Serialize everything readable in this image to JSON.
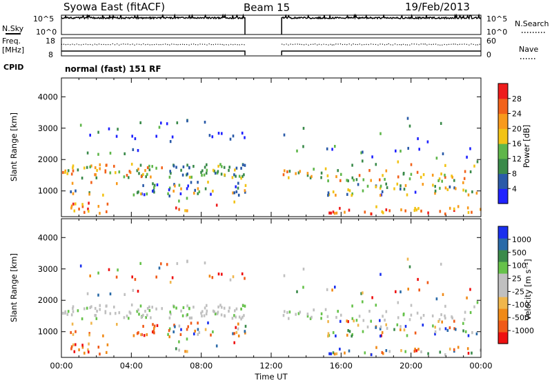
{
  "header": {
    "station": "Syowa East (fitACF)",
    "beam": "Beam 15",
    "date": "19/Feb/2013"
  },
  "summary_panels": {
    "nsky_label": "N.Sky",
    "nsearch_label": "N.Search",
    "nsky_ticks": [
      "10^5",
      "10^0"
    ],
    "nsearch_ticks": [
      "10^5",
      "10^0"
    ],
    "freq_label_1": "Freq.",
    "freq_label_2": "[MHz]",
    "freq_ticks": [
      "18",
      "8"
    ],
    "nave_label": "Nave",
    "nave_ticks": [
      "60",
      "0"
    ],
    "cpid_label": "CPID",
    "cpid_value": "normal (fast) 151 RF"
  },
  "colors": {
    "power_scale": [
      "#1f22ff",
      "#2a5aa8",
      "#3a8a4a",
      "#5fb64a",
      "#f2c316",
      "#f89a1c",
      "#f2621a",
      "#ee1c1c"
    ],
    "velocity_scale": [
      "#ee1010",
      "#f05a18",
      "#f08a18",
      "#f0b64c",
      "#c0c0c0",
      "#c0c0c0",
      "#66c24a",
      "#3a8a4a",
      "#2a6aa8",
      "#1a30ee"
    ]
  },
  "chart_data": [
    {
      "type": "heatmap",
      "title": "",
      "ylabel": "Slant Range [km]",
      "xlabel": "",
      "x_ticks": [
        "00:00",
        "04:00",
        "08:00",
        "12:00",
        "16:00",
        "20:00",
        "00:00"
      ],
      "xlim_hours": [
        0,
        24
      ],
      "ylim_km": [
        180,
        4600
      ],
      "y_ticks": [
        1000,
        2000,
        3000,
        4000
      ],
      "data_gap_hours": [
        10.5,
        12.6
      ],
      "colorbar": {
        "label": "Power [dB]",
        "ticks": [
          "28",
          "24",
          "20",
          "16",
          "12",
          "8",
          "4"
        ],
        "range": [
          0,
          30
        ]
      }
    },
    {
      "type": "heatmap",
      "title": "",
      "ylabel": "Slant Range [km]",
      "xlabel": "Time UT",
      "x_ticks": [
        "00:00",
        "04:00",
        "08:00",
        "12:00",
        "16:00",
        "20:00",
        "00:00"
      ],
      "xlim_hours": [
        0,
        24
      ],
      "ylim_km": [
        180,
        4600
      ],
      "y_ticks": [
        1000,
        2000,
        3000,
        4000
      ],
      "data_gap_hours": [
        10.5,
        12.6
      ],
      "colorbar": {
        "label": "Velocity [m s⁻¹]",
        "ticks": [
          "1000",
          "500",
          "100",
          "25",
          "-25",
          "-100",
          "-500",
          "-1000"
        ],
        "range": [
          -1000,
          1000
        ]
      }
    }
  ]
}
